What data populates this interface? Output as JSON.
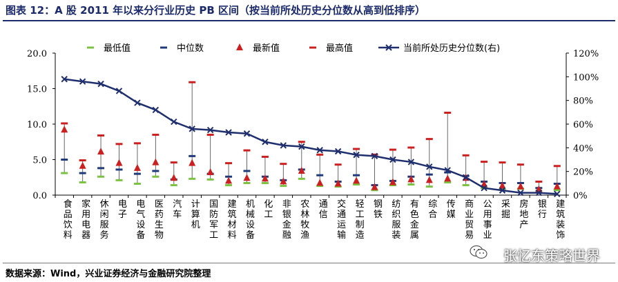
{
  "title": "图表 12：A 股 2011 年以来分行业历史 PB 区间（按当前所处历史分位数从高到低排序）",
  "source": "数据来源：Wind，兴业证券经济与金融研究院整理",
  "watermark": "张忆东策略世界",
  "colors": {
    "min": "#7cc242",
    "median": "#1f3a7a",
    "latest": "#cc1f1f",
    "max": "#cc1f1f",
    "percentile": "#1f2f6e",
    "range": "#666666"
  },
  "chart_data": {
    "type": "line",
    "left_axis": {
      "ylim": [
        0,
        20
      ],
      "ticks": [
        "0.0",
        "5.0",
        "10.0",
        "15.0",
        "20.0"
      ]
    },
    "right_axis": {
      "ylim": [
        0,
        120
      ],
      "ticks": [
        "0%",
        "20%",
        "40%",
        "60%",
        "80%",
        "100%",
        "120%"
      ]
    },
    "legend": [
      "最低值",
      "中位数",
      "最新值",
      "最高值",
      "当前所处历史分位数(右)"
    ],
    "categories": [
      "食品饮料",
      "家用电器",
      "休闲服务",
      "电子",
      "电气设备",
      "医药生物",
      "汽车",
      "计算机",
      "国防军工",
      "建筑材料",
      "机械设备",
      "化工",
      "非银金融",
      "农林牧渔",
      "通信",
      "交通运输",
      "轻工制造",
      "钢铁",
      "纺织服装",
      "有色金属",
      "综合",
      "传媒",
      "商业贸易",
      "公用事业",
      "采掘",
      "房地产",
      "银行",
      "建筑装饰"
    ],
    "series": [
      {
        "name": "最低值",
        "values": [
          3.1,
          1.8,
          2.6,
          2.1,
          1.6,
          2.6,
          1.4,
          2.3,
          2.2,
          1.4,
          1.7,
          1.7,
          1.3,
          2.3,
          1.3,
          1.2,
          1.5,
          0.7,
          1.4,
          1.5,
          1.2,
          1.8,
          1.4,
          1.0,
          0.8,
          0.9,
          0.6,
          0.7
        ]
      },
      {
        "name": "中位数",
        "values": [
          5.0,
          3.1,
          3.8,
          3.6,
          3.0,
          3.4,
          2.2,
          5.5,
          3.0,
          2.6,
          3.4,
          2.6,
          2.1,
          3.6,
          2.8,
          1.9,
          2.8,
          1.4,
          2.0,
          2.6,
          2.9,
          3.2,
          2.7,
          1.9,
          1.7,
          1.7,
          1.0,
          1.6
        ]
      },
      {
        "name": "最新值",
        "values": [
          9.2,
          4.1,
          6.1,
          4.5,
          3.8,
          4.6,
          2.4,
          4.5,
          3.2,
          2.0,
          2.4,
          2.3,
          1.9,
          3.4,
          1.7,
          1.6,
          2.0,
          1.1,
          1.8,
          2.2,
          2.1,
          2.3,
          2.4,
          1.5,
          1.3,
          1.2,
          0.8,
          1.2
        ]
      },
      {
        "name": "最高值",
        "values": [
          10.1,
          4.9,
          8.4,
          7.2,
          7.3,
          8.5,
          4.6,
          15.9,
          8.5,
          4.5,
          6.3,
          5.4,
          4.4,
          7.5,
          5.7,
          4.3,
          6.5,
          5.7,
          6.4,
          6.7,
          7.9,
          11.6,
          5.6,
          4.7,
          4.6,
          4.3,
          1.9,
          4.1
        ]
      },
      {
        "name": "当前所处历史分位数(右)",
        "values": [
          98,
          96,
          94,
          88,
          78,
          72,
          62,
          56,
          55,
          53,
          52,
          45,
          42,
          41,
          38,
          37,
          34,
          33,
          30,
          28,
          24,
          21,
          15,
          6,
          4,
          2,
          2,
          1
        ]
      }
    ],
    "grid": false,
    "legend_position": "top"
  }
}
